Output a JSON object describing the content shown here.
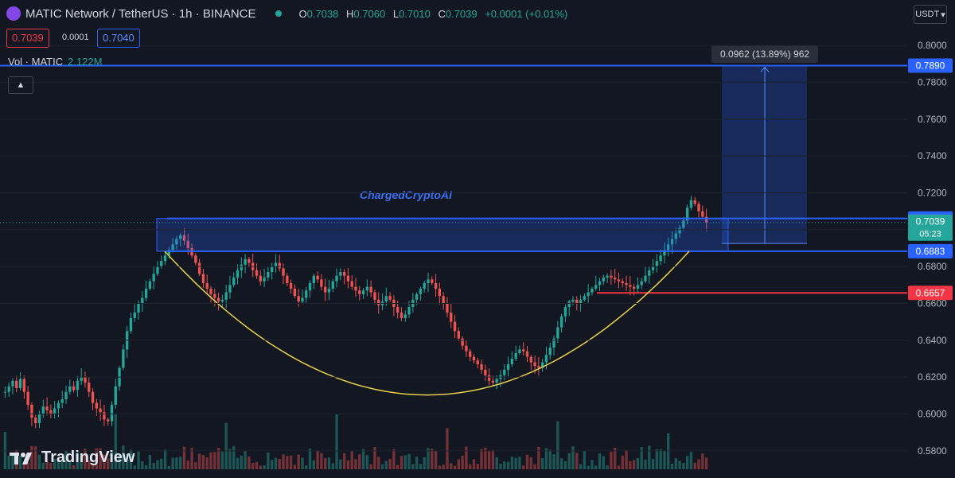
{
  "header": {
    "title": "MATIC Network / TetherUS · 1h · BINANCE",
    "open_label": "O",
    "open": "0.7038",
    "high_label": "H",
    "high": "0.7060",
    "low_label": "L",
    "low": "0.7010",
    "close_label": "C",
    "close": "0.7039",
    "change": "+0.0001 (+0.01%)"
  },
  "quotes": {
    "bid": "0.7039",
    "spread": "0.0001",
    "ask": "0.7040"
  },
  "volume": {
    "label": "Vol · MATIC",
    "value": "2.122M"
  },
  "currency": "USDT",
  "watermark": "ChargedCryptoAI",
  "logo": "TradingView",
  "colors": {
    "up": "#26a69a",
    "down": "#ef5350",
    "level": "#2962ff",
    "resistance": "#f23645",
    "curve": "#e6d14a",
    "background": "#131722"
  },
  "chart_data": {
    "type": "candlestick",
    "instrument": "MATIC Network / TetherUS",
    "timeframe": "1h",
    "exchange": "BINANCE",
    "ylim": [
      0.57,
      0.816
    ],
    "y_ticks": [
      "0.8000",
      "0.7800",
      "0.7600",
      "0.7400",
      "0.7200",
      "0.7000",
      "0.6800",
      "0.6600",
      "0.6400",
      "0.6200",
      "0.6000",
      "0.5800"
    ],
    "levels": [
      {
        "label": "0.7890",
        "value": 0.789,
        "color": "#2962ff"
      },
      {
        "label": "0.7061",
        "value": 0.7061,
        "color": "#2962ff"
      },
      {
        "label": "0.6883",
        "value": 0.6883,
        "color": "#2962ff"
      },
      {
        "label": "0.6657",
        "value": 0.6657,
        "color": "#f23645"
      }
    ],
    "current_price": {
      "label": "0.7039",
      "countdown": "05:23",
      "value": 0.7039
    },
    "measure_label": "0.0962 (13.89%) 962",
    "closes": [
      0.612,
      0.615,
      0.618,
      0.614,
      0.619,
      0.612,
      0.605,
      0.598,
      0.595,
      0.6,
      0.604,
      0.602,
      0.6,
      0.603,
      0.606,
      0.608,
      0.612,
      0.615,
      0.613,
      0.618,
      0.62,
      0.617,
      0.612,
      0.606,
      0.603,
      0.601,
      0.597,
      0.596,
      0.605,
      0.615,
      0.625,
      0.635,
      0.645,
      0.652,
      0.655,
      0.66,
      0.663,
      0.668,
      0.672,
      0.676,
      0.68,
      0.683,
      0.686,
      0.689,
      0.692,
      0.695,
      0.697,
      0.694,
      0.69,
      0.686,
      0.682,
      0.676,
      0.671,
      0.668,
      0.665,
      0.663,
      0.661,
      0.662,
      0.666,
      0.67,
      0.674,
      0.678,
      0.681,
      0.684,
      0.682,
      0.678,
      0.675,
      0.672,
      0.674,
      0.677,
      0.68,
      0.682,
      0.679,
      0.675,
      0.671,
      0.668,
      0.664,
      0.661,
      0.663,
      0.667,
      0.671,
      0.675,
      0.673,
      0.669,
      0.666,
      0.668,
      0.672,
      0.675,
      0.677,
      0.675,
      0.672,
      0.669,
      0.667,
      0.665,
      0.667,
      0.669,
      0.666,
      0.662,
      0.659,
      0.661,
      0.664,
      0.662,
      0.658,
      0.655,
      0.652,
      0.654,
      0.658,
      0.662,
      0.665,
      0.668,
      0.671,
      0.673,
      0.671,
      0.668,
      0.664,
      0.66,
      0.655,
      0.65,
      0.645,
      0.641,
      0.637,
      0.634,
      0.631,
      0.629,
      0.627,
      0.624,
      0.621,
      0.618,
      0.617,
      0.619,
      0.621,
      0.624,
      0.627,
      0.63,
      0.633,
      0.635,
      0.634,
      0.631,
      0.628,
      0.626,
      0.625,
      0.628,
      0.632,
      0.636,
      0.641,
      0.647,
      0.653,
      0.658,
      0.661,
      0.662,
      0.66,
      0.662,
      0.664,
      0.666,
      0.668,
      0.67,
      0.672,
      0.674,
      0.675,
      0.674,
      0.673,
      0.672,
      0.671,
      0.67,
      0.669,
      0.668,
      0.67,
      0.672,
      0.675,
      0.678,
      0.68,
      0.683,
      0.686,
      0.689,
      0.692,
      0.695,
      0.698,
      0.701,
      0.705,
      0.712,
      0.716,
      0.714,
      0.71,
      0.707,
      0.704
    ],
    "volume_label": "Vol · MATIC",
    "volume_value": "2.122M"
  }
}
